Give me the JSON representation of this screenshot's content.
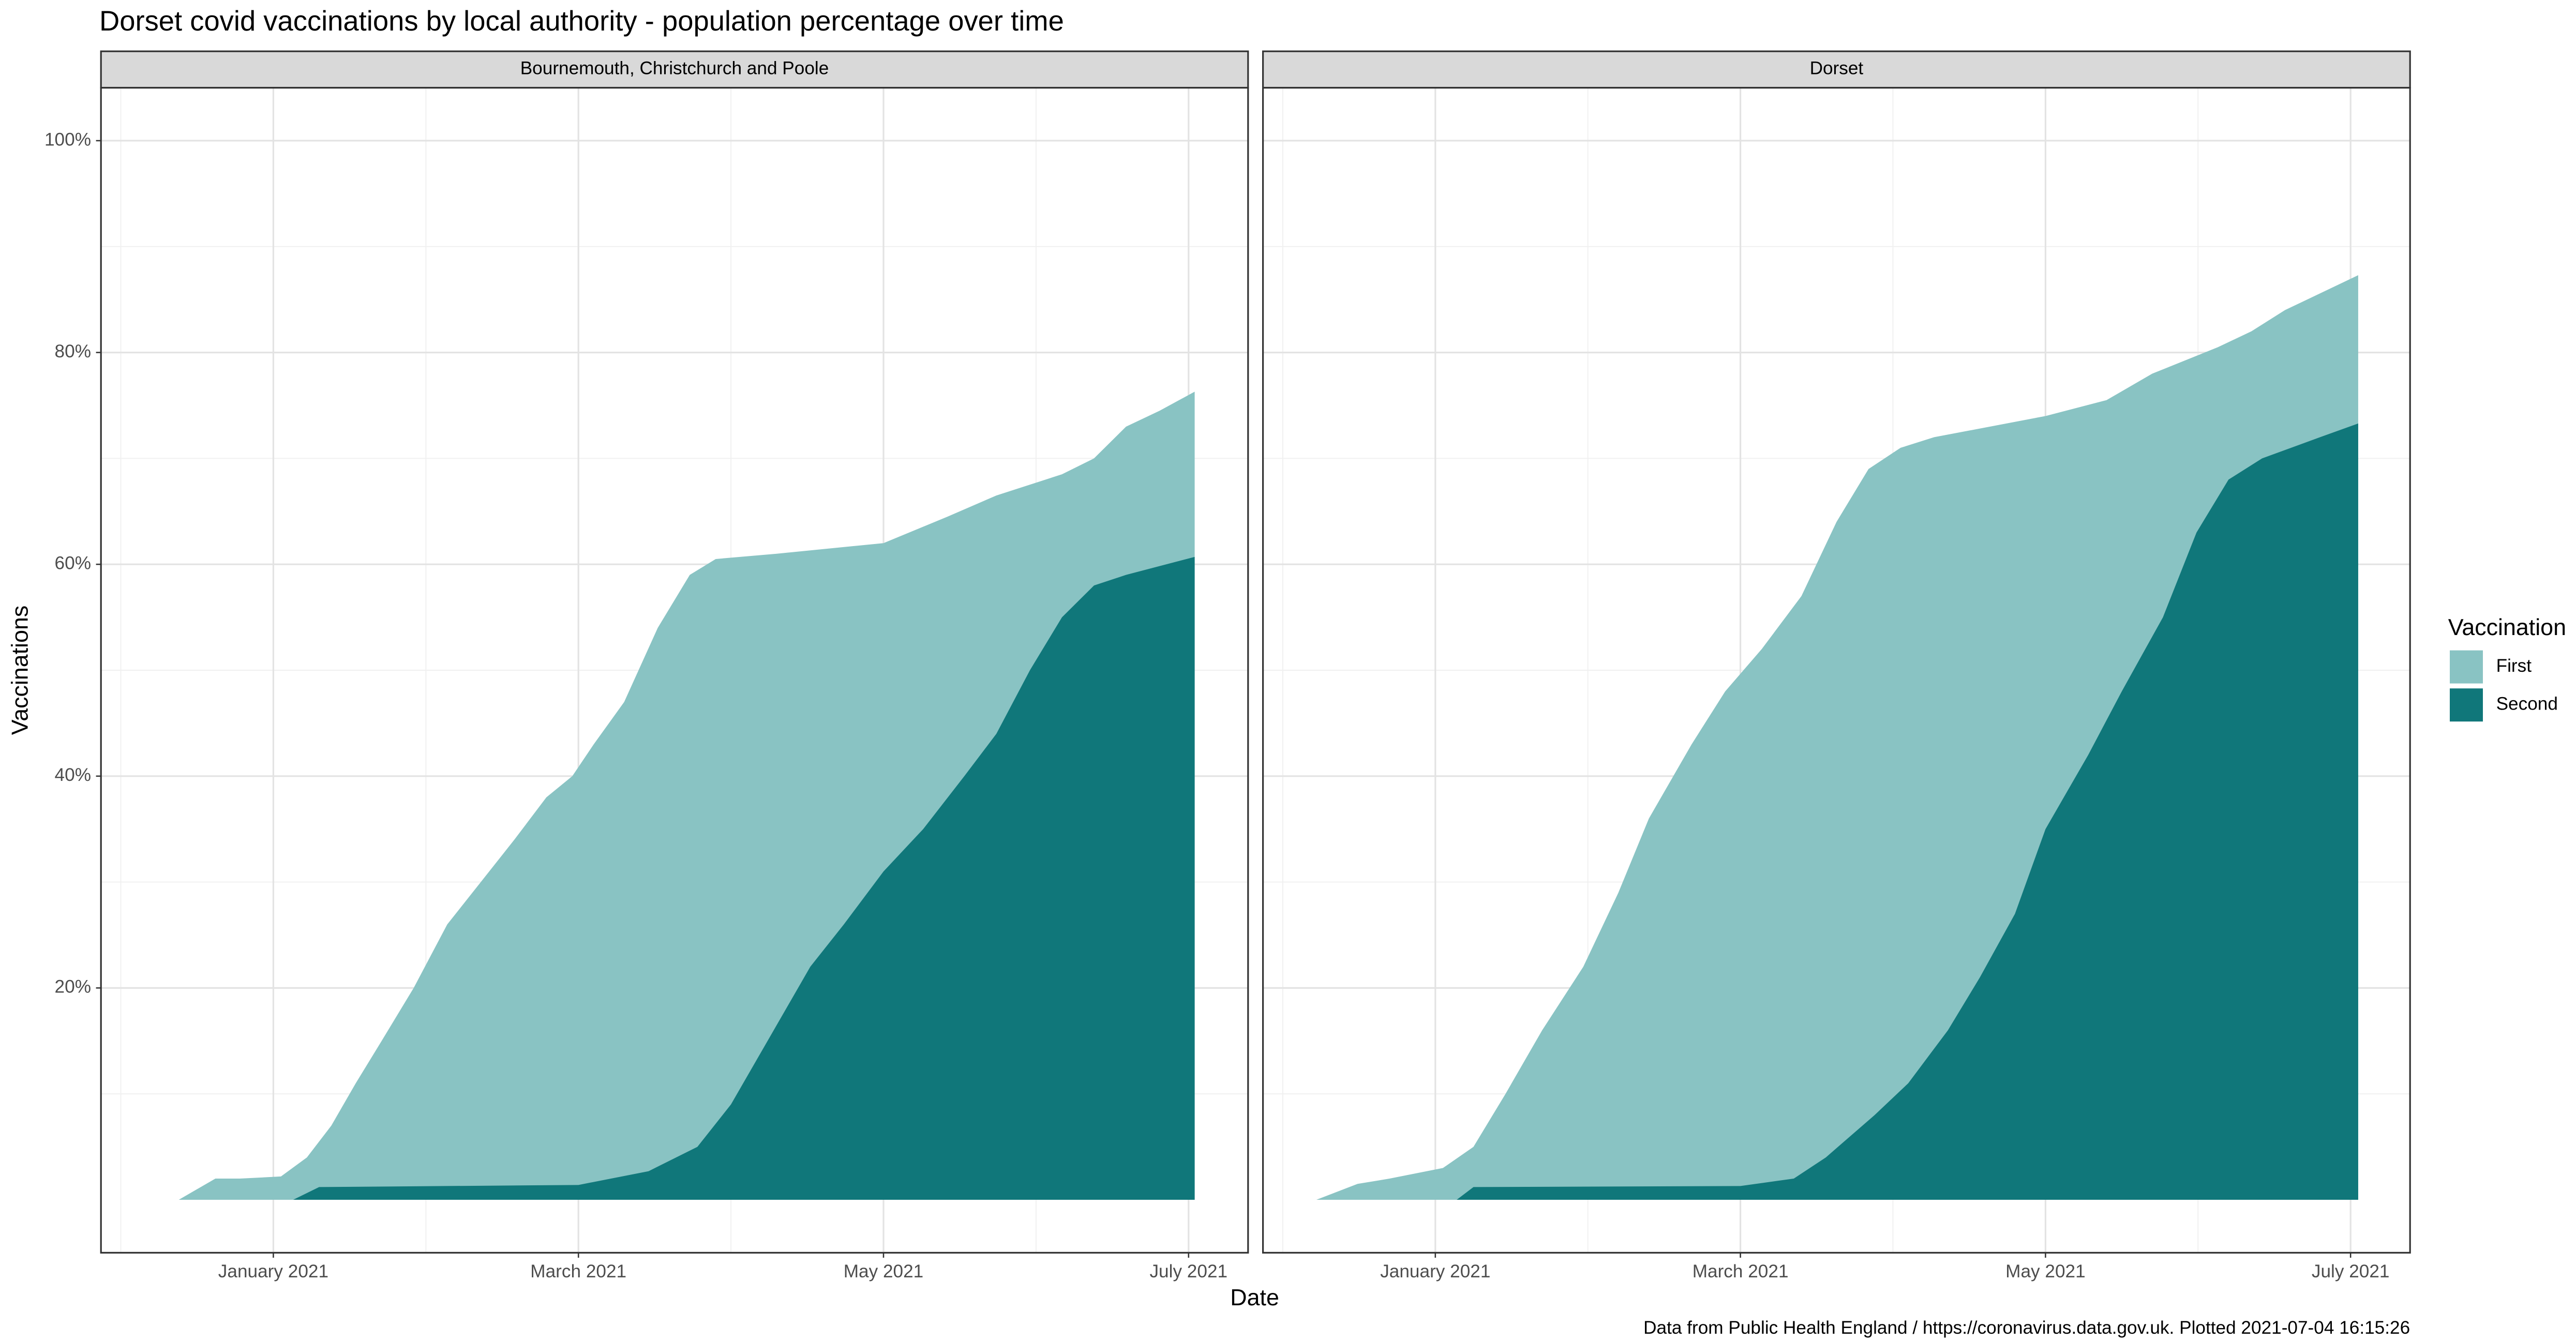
{
  "title": "Dorset covid vaccinations by local authority - population percentage over time",
  "x_label": "Date",
  "y_label": "Vaccinations",
  "caption": "Data from Public Health England / https://coronavirus.data.gov.uk. Plotted 2021-07-04 16:15:26",
  "legend": {
    "title": "Vaccination",
    "items": [
      {
        "name": "First",
        "color": "#89c3c3"
      },
      {
        "name": "Second",
        "color": "#10777a"
      }
    ]
  },
  "axes": {
    "xlim": [
      -0.13,
      7.39
    ],
    "xticks": [
      {
        "value": 1,
        "label": "January 2021"
      },
      {
        "value": 3,
        "label": "March 2021"
      },
      {
        "value": 5,
        "label": "May 2021"
      },
      {
        "value": 7,
        "label": "July 2021"
      }
    ],
    "minor_xticks": [
      0,
      2,
      4,
      6
    ],
    "ylim": [
      -5,
      105
    ],
    "yticks": [
      {
        "value": 20,
        "label": "20%"
      },
      {
        "value": 40,
        "label": "40%"
      },
      {
        "value": 60,
        "label": "60%"
      },
      {
        "value": 80,
        "label": "80%"
      },
      {
        "value": 100,
        "label": "100%"
      }
    ],
    "minor_yticks": [
      10,
      30,
      50,
      70,
      90
    ],
    "grid": true
  },
  "chart_data": [
    {
      "type": "area",
      "title": "Bournemouth, Christchurch and Poole",
      "series": [
        {
          "x": [
            0.38,
            0.62,
            0.78,
            1.05,
            1.22,
            1.38,
            1.54,
            1.71,
            1.92,
            2.14,
            2.36,
            2.58,
            2.79,
            2.96,
            3.1,
            3.3,
            3.52,
            3.73,
            3.9,
            4.3,
            5.0,
            5.42,
            5.74,
            6.17,
            6.38,
            6.59,
            6.81,
            7.04
          ],
          "values": [
            0,
            2,
            2,
            2.2,
            4,
            7,
            11,
            15,
            20,
            26,
            30,
            34,
            38,
            40,
            43,
            47,
            54,
            59,
            60.5,
            61,
            62,
            64.5,
            66.5,
            68.5,
            70,
            73,
            74.5,
            76.3
          ]
        },
        {
          "x": [
            1.13,
            1.3,
            3.0,
            3.46,
            3.78,
            4.0,
            4.2,
            4.52,
            4.74,
            5.0,
            5.26,
            5.53,
            5.74,
            5.96,
            6.17,
            6.38,
            6.59,
            7.04
          ],
          "values": [
            0,
            1.2,
            1.4,
            2.7,
            5,
            9,
            14,
            22,
            26,
            31,
            35,
            40,
            44,
            50,
            55,
            58,
            59,
            60.7
          ]
        }
      ]
    },
    {
      "type": "area",
      "title": "Dorset",
      "series": [
        {
          "x": [
            0.22,
            0.49,
            0.7,
            1.05,
            1.25,
            1.46,
            1.7,
            1.97,
            2.2,
            2.4,
            2.68,
            2.9,
            3.14,
            3.4,
            3.63,
            3.84,
            4.05,
            4.27,
            5.0,
            5.4,
            5.7,
            6.13,
            6.35,
            6.57,
            7.05
          ],
          "values": [
            0,
            1.5,
            2,
            3,
            5,
            10,
            16,
            22,
            29,
            36,
            43,
            48,
            52,
            57,
            64,
            69,
            71,
            72,
            74,
            75.5,
            78,
            80.5,
            82,
            84,
            87.3
          ]
        },
        {
          "x": [
            1.14,
            1.25,
            3.0,
            3.35,
            3.56,
            3.88,
            4.1,
            4.36,
            4.57,
            4.8,
            5.0,
            5.28,
            5.5,
            5.77,
            5.99,
            6.2,
            6.42,
            6.8,
            7.05
          ],
          "values": [
            0,
            1.2,
            1.3,
            2,
            4,
            8,
            11,
            16,
            21,
            27,
            35,
            42,
            48,
            55,
            63,
            68,
            70,
            72,
            73.3
          ]
        }
      ]
    }
  ]
}
